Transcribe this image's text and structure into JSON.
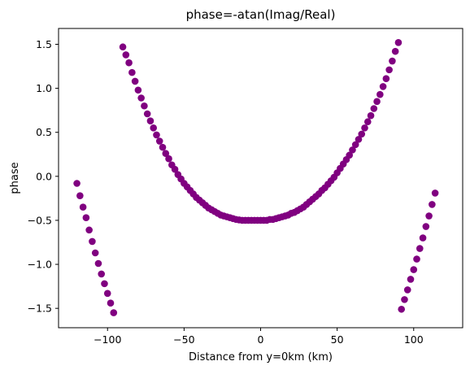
{
  "chart_data": {
    "type": "scatter",
    "title": "phase=-atan(Imag/Real)",
    "xlabel": "Distance from y=0km (km)",
    "ylabel": "phase",
    "xlim": [
      -132,
      132
    ],
    "ylim": [
      -1.72,
      1.68
    ],
    "xticks": [
      -100,
      -50,
      0,
      50,
      100
    ],
    "xtick_labels": [
      "−100",
      "−50",
      "0",
      "50",
      "100"
    ],
    "yticks": [
      -1.5,
      -1.0,
      -0.5,
      0.0,
      0.5,
      1.0,
      1.5
    ],
    "ytick_labels": [
      "−1.5",
      "−1.0",
      "−0.5",
      "0.0",
      "0.5",
      "1.0",
      "1.5"
    ],
    "grid": false,
    "legend": false,
    "marker_color": "#800080",
    "series": [
      {
        "points": [
          [
            -120,
            -0.08
          ],
          [
            -118,
            -0.22
          ],
          [
            -116,
            -0.35
          ],
          [
            -114,
            -0.47
          ],
          [
            -112,
            -0.61
          ],
          [
            -110,
            -0.74
          ],
          [
            -108,
            -0.87
          ],
          [
            -106,
            -0.99
          ],
          [
            -104,
            -1.11
          ],
          [
            -102,
            -1.22
          ],
          [
            -100,
            -1.33
          ],
          [
            -98,
            -1.44
          ],
          [
            -96,
            -1.55
          ],
          [
            -90,
            1.47
          ],
          [
            -88,
            1.38
          ],
          [
            -86,
            1.29
          ],
          [
            -84,
            1.18
          ],
          [
            -82,
            1.08
          ],
          [
            -80,
            0.98
          ],
          [
            -78,
            0.89
          ],
          [
            -76,
            0.8
          ],
          [
            -74,
            0.71
          ],
          [
            -72,
            0.63
          ],
          [
            -70,
            0.55
          ],
          [
            -68,
            0.47
          ],
          [
            -66,
            0.4
          ],
          [
            -64,
            0.33
          ],
          [
            -62,
            0.26
          ],
          [
            -60,
            0.2
          ],
          [
            -58,
            0.13
          ],
          [
            -56,
            0.08
          ],
          [
            -54,
            0.02
          ],
          [
            -52,
            -0.03
          ],
          [
            -50,
            -0.08
          ],
          [
            -48,
            -0.12
          ],
          [
            -46,
            -0.16
          ],
          [
            -44,
            -0.2
          ],
          [
            -42,
            -0.24
          ],
          [
            -40,
            -0.27
          ],
          [
            -38,
            -0.3
          ],
          [
            -36,
            -0.33
          ],
          [
            -34,
            -0.36
          ],
          [
            -32,
            -0.38
          ],
          [
            -30,
            -0.4
          ],
          [
            -28,
            -0.42
          ],
          [
            -26,
            -0.44
          ],
          [
            -24,
            -0.45
          ],
          [
            -22,
            -0.46
          ],
          [
            -20,
            -0.47
          ],
          [
            -18,
            -0.48
          ],
          [
            -16,
            -0.49
          ],
          [
            -14,
            -0.495
          ],
          [
            -12,
            -0.5
          ],
          [
            -10,
            -0.5
          ],
          [
            -8,
            -0.5
          ],
          [
            -6,
            -0.5
          ],
          [
            -4,
            -0.5
          ],
          [
            -2,
            -0.5
          ],
          [
            0,
            -0.5
          ],
          [
            2,
            -0.5
          ],
          [
            4,
            -0.5
          ],
          [
            6,
            -0.49
          ],
          [
            8,
            -0.49
          ],
          [
            10,
            -0.48
          ],
          [
            12,
            -0.47
          ],
          [
            14,
            -0.46
          ],
          [
            16,
            -0.45
          ],
          [
            18,
            -0.44
          ],
          [
            20,
            -0.42
          ],
          [
            22,
            -0.41
          ],
          [
            24,
            -0.39
          ],
          [
            26,
            -0.37
          ],
          [
            28,
            -0.35
          ],
          [
            30,
            -0.32
          ],
          [
            32,
            -0.29
          ],
          [
            34,
            -0.26
          ],
          [
            36,
            -0.23
          ],
          [
            38,
            -0.2
          ],
          [
            40,
            -0.16
          ],
          [
            42,
            -0.13
          ],
          [
            44,
            -0.09
          ],
          [
            46,
            -0.05
          ],
          [
            48,
            -0.01
          ],
          [
            50,
            0.04
          ],
          [
            52,
            0.09
          ],
          [
            54,
            0.14
          ],
          [
            56,
            0.19
          ],
          [
            58,
            0.24
          ],
          [
            60,
            0.3
          ],
          [
            62,
            0.36
          ],
          [
            64,
            0.42
          ],
          [
            66,
            0.48
          ],
          [
            68,
            0.55
          ],
          [
            70,
            0.62
          ],
          [
            72,
            0.69
          ],
          [
            74,
            0.77
          ],
          [
            76,
            0.85
          ],
          [
            78,
            0.93
          ],
          [
            80,
            1.02
          ],
          [
            82,
            1.11
          ],
          [
            84,
            1.21
          ],
          [
            86,
            1.31
          ],
          [
            88,
            1.42
          ],
          [
            90,
            1.52
          ],
          [
            92,
            -1.51
          ],
          [
            94,
            -1.4
          ],
          [
            96,
            -1.29
          ],
          [
            98,
            -1.17
          ],
          [
            100,
            -1.06
          ],
          [
            102,
            -0.94
          ],
          [
            104,
            -0.82
          ],
          [
            106,
            -0.7
          ],
          [
            108,
            -0.57
          ],
          [
            110,
            -0.45
          ],
          [
            112,
            -0.32
          ],
          [
            114,
            -0.19
          ]
        ]
      }
    ]
  }
}
